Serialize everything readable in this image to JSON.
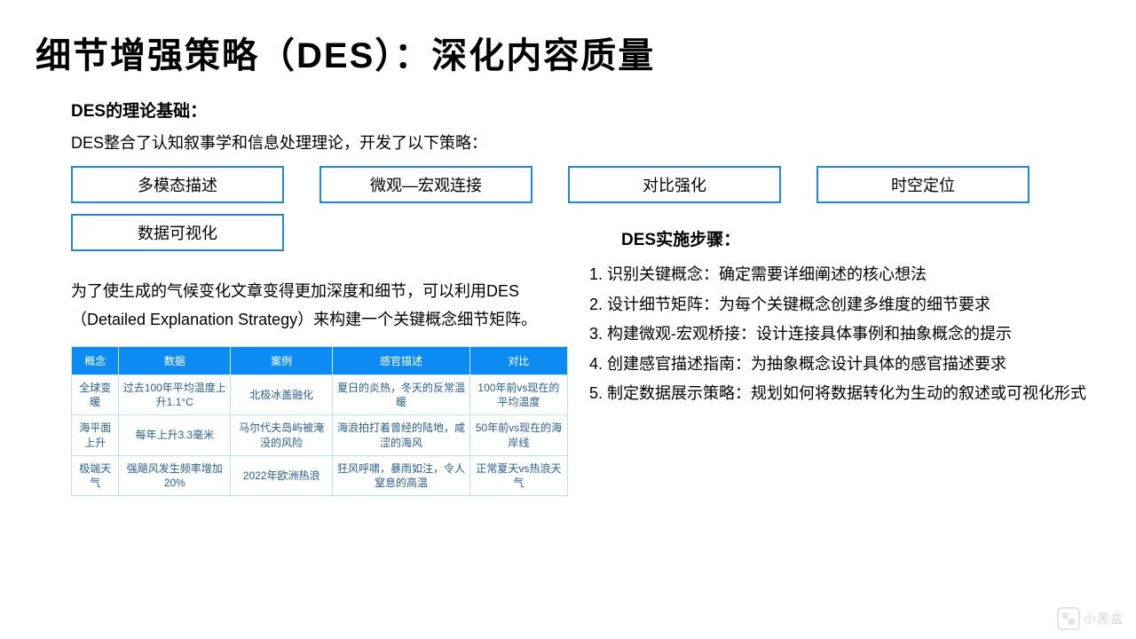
{
  "title": "细节增强策略（DES）：深化内容质量",
  "section_theory_heading": "DES的理论基础：",
  "intro": "DES整合了认知叙事学和信息处理理论，开发了以下策略：",
  "strategies": {
    "s1": "多模态描述",
    "s2": "微观—宏观连接",
    "s3": "对比强化",
    "s4": "时空定位",
    "s5": "数据可视化"
  },
  "left_paragraph": "为了使生成的气候变化文章变得更加深度和细节，可以利用DES（Detailed Explanation Strategy）来构建一个关键概念细节矩阵。",
  "matrix": {
    "columns": [
      "概念",
      "数据",
      "案例",
      "感官描述",
      "对比"
    ],
    "rows": [
      [
        "全球变暖",
        "过去100年平均温度上升1.1°C",
        "北极冰盖融化",
        "夏日的炎热，冬天的反常温暖",
        "100年前vs现在的平均温度"
      ],
      [
        "海平面上升",
        "每年上升3.3毫米",
        "马尔代夫岛屿被淹没的风险",
        "海浪拍打着曾经的陆地，咸涩的海风",
        "50年前vs现在的海岸线"
      ],
      [
        "极端天气",
        "强飓风发生频率增加20%",
        "2022年欧洲热浪",
        "狂风呼啸，暴雨如注，令人窒息的高温",
        "正常夏天vs热浪天气"
      ]
    ],
    "header_bg": "#0d8bf2",
    "header_fg": "#ffffff",
    "cell_fg": "#2a5d8a",
    "border_color": "#bcdff7"
  },
  "steps_heading": "DES实施步骤：",
  "steps": [
    "识别关键概念：确定需要详细阐述的核心想法",
    "设计细节矩阵：为每个关键概念创建多维度的细节要求",
    "构建微观-宏观桥接：设计连接具体事例和抽象概念的提示",
    "创建感官描述指南：为抽象概念设计具体的感官描述要求",
    "制定数据展示策略：规划如何将数据转化为生动的叙述或可视化形式"
  ],
  "watermark_text": "小黑盒",
  "colors": {
    "box_border": "#1e88e5",
    "text": "#000000",
    "background": "#ffffff"
  }
}
